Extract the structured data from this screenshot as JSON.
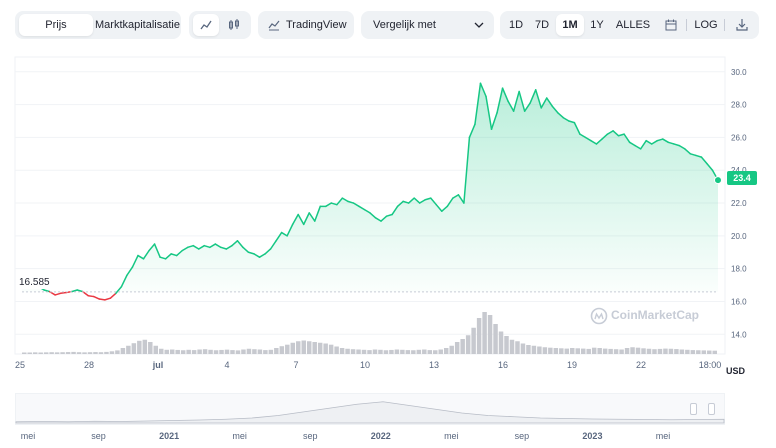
{
  "toolbar": {
    "tabs": [
      {
        "label": "Prijs"
      },
      {
        "label": "Marktkapitalisatie"
      }
    ],
    "chart_type_icons": [
      "line-chart-icon",
      "candlestick-icon"
    ],
    "tradingview_label": "TradingView",
    "compare_label": "Vergelijk met",
    "ranges": [
      "1D",
      "7D",
      "1M",
      "1Y",
      "ALLES"
    ],
    "active_range": "1M",
    "log_label": "LOG"
  },
  "colors": {
    "up": "#16c784",
    "down": "#ea3943",
    "volume": "#c7c9cf",
    "navigator_line": "#b7bcc6"
  },
  "chart_data": {
    "type": "line",
    "series": [
      {
        "values": [
          17.15,
          17.1,
          17.0,
          16.9,
          16.7,
          16.6,
          16.4,
          16.5,
          16.55,
          16.6,
          16.7,
          16.6,
          16.35,
          16.3,
          16.15,
          16.1,
          16.2,
          16.5,
          16.9,
          17.6,
          18.1,
          18.8,
          18.6,
          19.1,
          19.5,
          18.7,
          18.6,
          18.9,
          18.8,
          19.1,
          19.3,
          19.4,
          19.2,
          19.4,
          19.3,
          19.5,
          19.3,
          19.2,
          19.4,
          19.7,
          19.3,
          19.0,
          18.9,
          18.7,
          18.9,
          19.2,
          19.7,
          20.2,
          20.0,
          20.7,
          21.3,
          20.7,
          21.4,
          20.9,
          21.8,
          21.8,
          22.0,
          21.9,
          22.3,
          22.1,
          22.0,
          21.8,
          21.6,
          21.4,
          21.1,
          20.9,
          21.2,
          21.3,
          21.8,
          22.1,
          22.0,
          22.3,
          22.0,
          22.2,
          22.3,
          21.9,
          21.5,
          21.8,
          22.3,
          22.5,
          22.0,
          26.0,
          26.8,
          29.3,
          28.5,
          26.5,
          27.5,
          29.0,
          28.2,
          27.6,
          28.8,
          27.6,
          28.1,
          28.9,
          27.8,
          28.4,
          27.9,
          27.5,
          27.2,
          27.0,
          26.9,
          26.2,
          26.0,
          25.8,
          25.6,
          25.9,
          26.2,
          26.4,
          26.1,
          26.2,
          25.7,
          25.5,
          25.3,
          25.8,
          25.6,
          25.8,
          25.9,
          25.7,
          25.6,
          25.5,
          25.3,
          25.0,
          24.9,
          24.8,
          24.4,
          24.0,
          23.4
        ]
      }
    ],
    "x_tick_labels": [
      "25",
      "28",
      "jul",
      "4",
      "7",
      "10",
      "13",
      "16",
      "19",
      "22",
      "18:00"
    ],
    "y_tick_labels": [
      "30.0",
      "28.0",
      "26.0",
      "24.0",
      "22.0",
      "20.0",
      "18.0",
      "16.0",
      "14.0"
    ],
    "ylim": [
      12.8,
      30.9
    ],
    "start_value_label": "16.585",
    "current_value_label": "23.4",
    "currency_label": "USD",
    "volume_relative": [
      0.1,
      0.1,
      0.11,
      0.1,
      0.11,
      0.12,
      0.11,
      0.12,
      0.13,
      0.14,
      0.12,
      0.11,
      0.12,
      0.13,
      0.12,
      0.14,
      0.18,
      0.24,
      0.4,
      0.55,
      0.72,
      0.88,
      0.95,
      0.8,
      0.55,
      0.35,
      0.28,
      0.3,
      0.27,
      0.25,
      0.28,
      0.26,
      0.3,
      0.32,
      0.28,
      0.25,
      0.27,
      0.29,
      0.26,
      0.24,
      0.3,
      0.35,
      0.32,
      0.3,
      0.26,
      0.28,
      0.4,
      0.52,
      0.62,
      0.75,
      0.85,
      0.9,
      0.85,
      0.8,
      0.75,
      0.7,
      0.62,
      0.5,
      0.4,
      0.35,
      0.32,
      0.3,
      0.28,
      0.26,
      0.3,
      0.28,
      0.25,
      0.27,
      0.3,
      0.28,
      0.26,
      0.25,
      0.28,
      0.3,
      0.26,
      0.25,
      0.3,
      0.4,
      0.55,
      0.8,
      1.0,
      1.25,
      1.75,
      2.4,
      2.8,
      2.6,
      2.0,
      1.5,
      1.2,
      0.95,
      0.85,
      0.7,
      0.6,
      0.55,
      0.5,
      0.45,
      0.42,
      0.4,
      0.38,
      0.36,
      0.4,
      0.38,
      0.36,
      0.34,
      0.42,
      0.4,
      0.36,
      0.34,
      0.32,
      0.3,
      0.4,
      0.45,
      0.42,
      0.38,
      0.35,
      0.32,
      0.34,
      0.36,
      0.35,
      0.33,
      0.3,
      0.28,
      0.26,
      0.25,
      0.24,
      0.23,
      0.22
    ],
    "navigator_x_labels": [
      "mei",
      "sep",
      "2021",
      "mei",
      "sep",
      "2022",
      "mei",
      "sep",
      "2023",
      "mei"
    ],
    "watermark": "CoinMarketCap"
  }
}
